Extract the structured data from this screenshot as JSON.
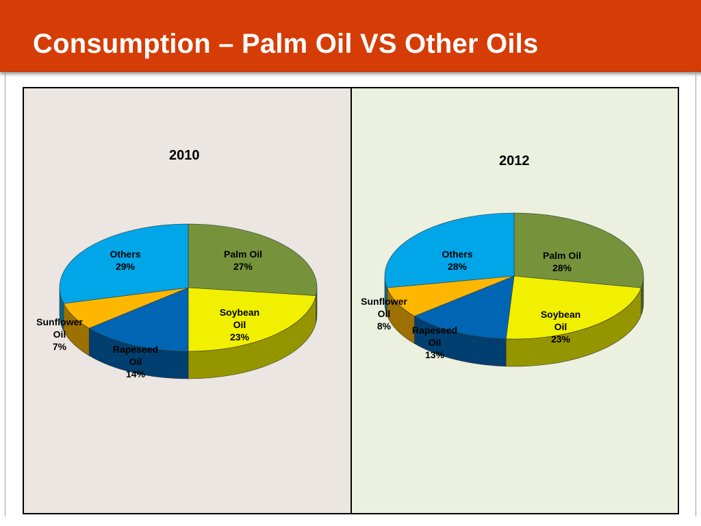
{
  "title": "Consumption – Palm Oil VS Other Oils",
  "colors": {
    "banner": "#d63c05",
    "palm_oil": "#76933c",
    "soybean_oil": "#f0f000",
    "rapeseed_oil": "#0066b3",
    "sunflower_oil": "#fdb701",
    "others": "#00a6e8"
  },
  "chart_data": [
    {
      "type": "pie",
      "title": "2010",
      "categories": [
        "Palm Oil",
        "Soybean Oil",
        "Rapeseed Oil",
        "Sunflower Oil",
        "Others"
      ],
      "values": [
        27,
        23,
        14,
        7,
        29
      ],
      "unit": "%",
      "labels": [
        {
          "lines": [
            "Palm Oil",
            "27%"
          ]
        },
        {
          "lines": [
            "Soybean",
            "Oil",
            "23%"
          ]
        },
        {
          "lines": [
            "Rapeseed",
            "Oil",
            "14%"
          ]
        },
        {
          "lines": [
            "Sunflower",
            "Oil",
            "7%"
          ]
        },
        {
          "lines": [
            "Others",
            "29%"
          ]
        }
      ],
      "style": "3d"
    },
    {
      "type": "pie",
      "title": "2012",
      "categories": [
        "Palm Oil",
        "Soybean Oil",
        "Rapeseed Oil",
        "Sunflower Oil",
        "Others"
      ],
      "values": [
        28,
        23,
        13,
        8,
        28
      ],
      "unit": "%",
      "labels": [
        {
          "lines": [
            "Palm Oil",
            "28%"
          ]
        },
        {
          "lines": [
            "Soybean",
            "Oil",
            "23%"
          ]
        },
        {
          "lines": [
            "Rapeseed",
            "Oil",
            "13%"
          ]
        },
        {
          "lines": [
            "Sunflower",
            "Oil",
            "8%"
          ]
        },
        {
          "lines": [
            "Others",
            "28%"
          ]
        }
      ],
      "style": "3d"
    }
  ]
}
